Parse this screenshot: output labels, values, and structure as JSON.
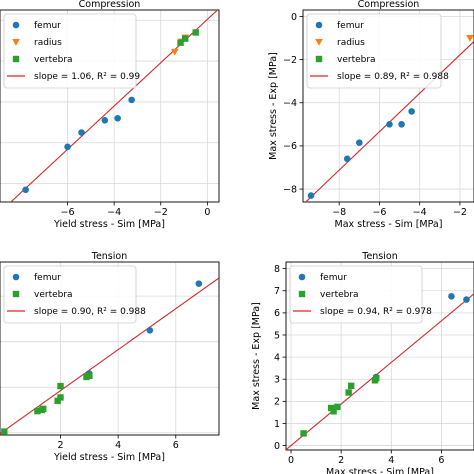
{
  "colors": {
    "femur": "#1f77b4",
    "radius": "#ff7f0e",
    "vertebra": "#2ca02c",
    "fit": "#d62728",
    "grid": "#d9d9d9"
  },
  "chart_data": [
    {
      "type": "scatter",
      "title": "Compression",
      "xlabel": "Yield stress - Sim [MPa]",
      "ylabel": "",
      "xlim": [
        -8.9,
        0.5
      ],
      "ylim": [
        -8.9,
        0.5
      ],
      "xticks": [
        -6,
        -4,
        -2,
        0
      ],
      "yticks": [
        -8,
        -6,
        -4,
        -2,
        0
      ],
      "xtick_labels": [
        "−6",
        "−4",
        "−2",
        "0"
      ],
      "ytick_labels": [
        "",
        "",
        "",
        "",
        ""
      ],
      "legend_position": "upper-left",
      "fit": {
        "slope": 1.06,
        "intercept": 0.04,
        "label": "slope = 1.06, R² = 0.99"
      },
      "series": [
        {
          "name": "femur",
          "marker": "circle",
          "points": [
            [
              -7.8,
              -8.3
            ],
            [
              -6.0,
              -6.2
            ],
            [
              -5.4,
              -5.5
            ],
            [
              -4.4,
              -4.9
            ],
            [
              -3.85,
              -4.8
            ],
            [
              -3.25,
              -3.9
            ]
          ]
        },
        {
          "name": "radius",
          "marker": "triangle",
          "points": [
            [
              -1.4,
              -1.55
            ],
            [
              -1.1,
              -1.05
            ],
            [
              -0.95,
              -0.85
            ]
          ]
        },
        {
          "name": "vertebra",
          "marker": "square",
          "points": [
            [
              -1.15,
              -1.1
            ],
            [
              -0.95,
              -0.9
            ],
            [
              -0.5,
              -0.6
            ]
          ]
        }
      ]
    },
    {
      "type": "scatter",
      "title": "Compression",
      "xlabel": "Max stress - Sim [MPa]",
      "ylabel": "Max stress - Exp [MPa]",
      "xlim": [
        -9.8,
        -1.3
      ],
      "ylim": [
        -8.6,
        0.3
      ],
      "xticks": [
        -8,
        -6,
        -4,
        -2
      ],
      "yticks": [
        -8,
        -6,
        -4,
        -2,
        0
      ],
      "xtick_labels": [
        "−8",
        "−6",
        "−4",
        "−2"
      ],
      "ytick_labels": [
        "−8",
        "−6",
        "−4",
        "−2",
        "0"
      ],
      "legend_position": "upper-left",
      "fit": {
        "slope": 0.89,
        "intercept": 0.0,
        "label": "slope = 0.89, R² = 0.988"
      },
      "series": [
        {
          "name": "femur",
          "marker": "circle",
          "points": [
            [
              -9.4,
              -8.3
            ],
            [
              -7.6,
              -6.6
            ],
            [
              -7.0,
              -5.85
            ],
            [
              -5.5,
              -5.0
            ],
            [
              -4.9,
              -5.0
            ],
            [
              -4.4,
              -4.4
            ]
          ]
        },
        {
          "name": "radius",
          "marker": "triangle",
          "points": [
            [
              -1.5,
              -1.0
            ]
          ]
        },
        {
          "name": "vertebra",
          "marker": "square",
          "points": []
        }
      ]
    },
    {
      "type": "scatter",
      "title": "Tension",
      "xlabel": "Yield stress - Sim [MPa]",
      "ylabel": "",
      "xlim": [
        -0.1,
        7.5
      ],
      "ylim": [
        -0.1,
        7.5
      ],
      "xticks": [
        2,
        4,
        6
      ],
      "yticks": [
        0,
        2,
        4,
        6
      ],
      "xtick_labels": [
        "2",
        "4",
        "6"
      ],
      "ytick_labels": [
        "",
        "",
        "",
        ""
      ],
      "legend_position": "upper-left",
      "fit": {
        "slope": 0.9,
        "intercept": 0.05,
        "label": "slope = 0.90, R² = 0.988"
      },
      "series": [
        {
          "name": "femur",
          "marker": "circle",
          "points": [
            [
              3.0,
              2.6
            ],
            [
              5.1,
              4.5
            ],
            [
              6.8,
              6.55
            ]
          ]
        },
        {
          "name": "vertebra",
          "marker": "square",
          "points": [
            [
              0.05,
              0.05
            ],
            [
              1.2,
              0.95
            ],
            [
              1.35,
              1.0
            ],
            [
              1.4,
              1.05
            ],
            [
              1.9,
              1.4
            ],
            [
              2.0,
              1.55
            ],
            [
              2.0,
              2.05
            ],
            [
              2.9,
              2.45
            ],
            [
              3.0,
              2.5
            ]
          ]
        }
      ]
    },
    {
      "type": "scatter",
      "title": "Tension",
      "xlabel": "Max stress - Sim [MPa]",
      "ylabel": "Max stress - Exp [MPa]",
      "xlim": [
        -0.2,
        7.3
      ],
      "ylim": [
        -0.2,
        8.3
      ],
      "xticks": [
        0,
        2,
        4,
        6
      ],
      "yticks": [
        0,
        1,
        2,
        3,
        4,
        5,
        6,
        7,
        8
      ],
      "xtick_labels": [
        "0",
        "2",
        "4",
        "6"
      ],
      "ytick_labels": [
        "0",
        "1",
        "2",
        "3",
        "4",
        "5",
        "6",
        "7",
        "8"
      ],
      "legend_position": "upper-left",
      "fit": {
        "slope": 0.94,
        "intercept": 0.0,
        "label": "slope = 0.94, R² = 0.978"
      },
      "series": [
        {
          "name": "femur",
          "marker": "circle",
          "points": [
            [
              3.4,
              3.1
            ],
            [
              6.4,
              6.75
            ],
            [
              7.0,
              6.6
            ]
          ]
        },
        {
          "name": "vertebra",
          "marker": "square",
          "points": [
            [
              0.5,
              0.55
            ],
            [
              1.6,
              1.7
            ],
            [
              1.7,
              1.55
            ],
            [
              1.85,
              1.75
            ],
            [
              2.3,
              2.4
            ],
            [
              2.4,
              2.7
            ],
            [
              3.35,
              2.95
            ],
            [
              3.4,
              3.05
            ]
          ]
        }
      ]
    }
  ]
}
